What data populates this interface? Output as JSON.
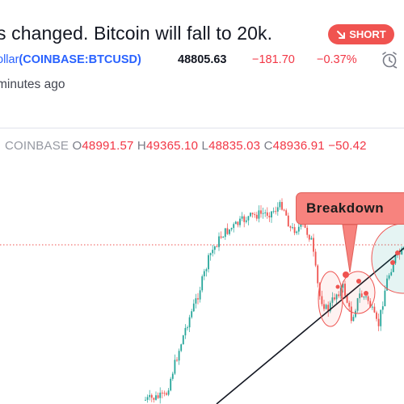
{
  "idea": {
    "title": "s changed. Bitcoin will fall to 20k.",
    "badge": "SHORT",
    "symbol_name": "ollar",
    "symbol_code": "(COINBASE:BTCUSD)",
    "price": "48805.63",
    "change": "−181.70",
    "change_pct": "−0.37%",
    "time_ago": "minutes ago"
  },
  "legend": {
    "exchange": "COINBASE",
    "o_label": "O",
    "o_value": "48991.57",
    "h_label": "H",
    "h_value": "49365.10",
    "l_label": "L",
    "l_value": "48835.03",
    "c_label": "C",
    "c_value": "48936.91",
    "change": "−50.42"
  },
  "annotation": {
    "label": "Breakdown"
  },
  "colors": {
    "up": "#26a69a",
    "down": "#ef5350",
    "short_badge": "#f05350",
    "accent": "#2962ff"
  },
  "icons": {
    "alarm": "alarm-clock-icon",
    "short": "arrow-down-right-icon"
  }
}
